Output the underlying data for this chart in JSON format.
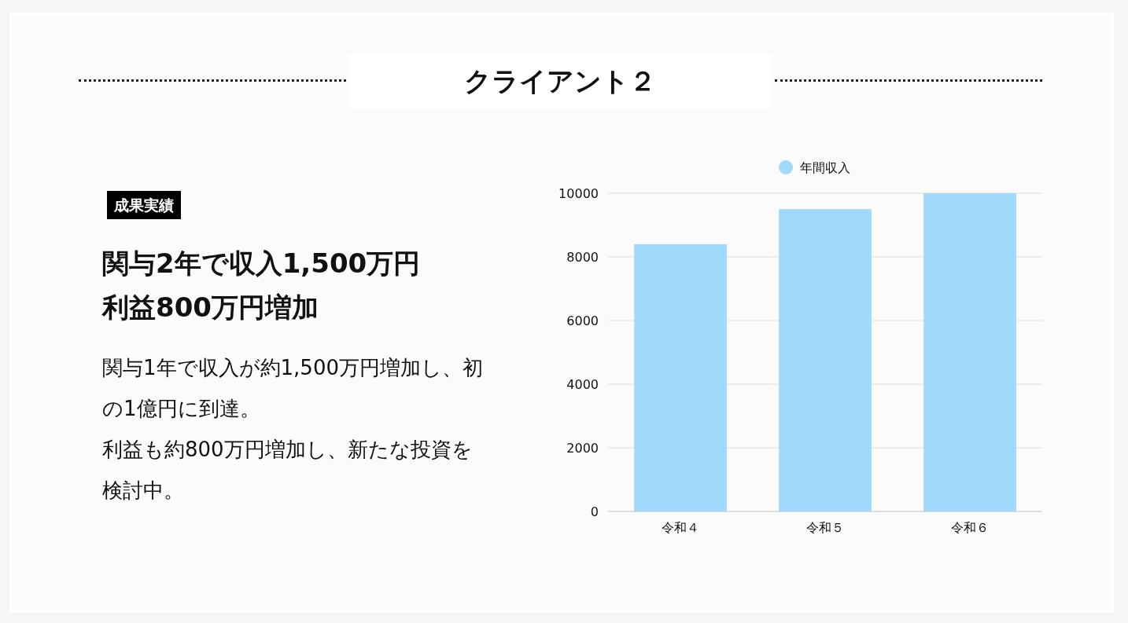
{
  "chart_data": {
    "type": "bar",
    "title": "クライアント２",
    "annotations": [
      "成果実績",
      "関与2年で収入1,500万円",
      "利益800万円増加",
      "関与1年で収入が約1,500万円増加し、初の1億円に到達。",
      "利益も約800万円増加し、新たな投資を検討中。"
    ],
    "categories": [
      "令和４",
      "令和５",
      "令和６"
    ],
    "series": [
      {
        "name": "年間収入",
        "color": "#a0d9fc",
        "values": [
          8400,
          9500,
          10000
        ]
      }
    ],
    "ylim": [
      0,
      10000
    ],
    "yticks": [
      0,
      2000,
      4000,
      6000,
      8000,
      10000
    ],
    "grid": "y",
    "legend": "top"
  }
}
